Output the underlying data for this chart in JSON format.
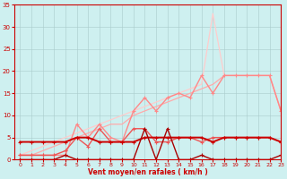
{
  "xlabel": "Vent moyen/en rafales ( km/h )",
  "background_color": "#cef0f0",
  "grid_color": "#aacccc",
  "xlim": [
    -0.5,
    23
  ],
  "ylim": [
    0,
    35
  ],
  "yticks": [
    0,
    5,
    10,
    15,
    20,
    25,
    30,
    35
  ],
  "xticks": [
    0,
    1,
    2,
    3,
    4,
    5,
    6,
    7,
    8,
    9,
    10,
    11,
    12,
    13,
    14,
    15,
    16,
    17,
    18,
    19,
    20,
    21,
    22,
    23
  ],
  "series": [
    {
      "name": "lightest_ramp",
      "color": "#ffcccc",
      "linewidth": 0.9,
      "marker": "None",
      "markersize": 0,
      "x": [
        0,
        1,
        2,
        3,
        4,
        5,
        6,
        7,
        8,
        9,
        10,
        11,
        12,
        13,
        14,
        15,
        16,
        17,
        18,
        19,
        20,
        21,
        22,
        23
      ],
      "y": [
        1,
        2,
        3,
        4,
        5,
        6,
        7,
        8,
        9,
        10,
        11,
        12,
        13,
        14,
        15,
        16,
        17,
        33,
        19,
        19,
        19,
        19,
        19,
        11
      ]
    },
    {
      "name": "light_ramp",
      "color": "#ffaaaa",
      "linewidth": 0.9,
      "marker": "None",
      "markersize": 0,
      "x": [
        0,
        1,
        2,
        3,
        4,
        5,
        6,
        7,
        8,
        9,
        10,
        11,
        12,
        13,
        14,
        15,
        16,
        17,
        18,
        19,
        20,
        21,
        22,
        23
      ],
      "y": [
        1,
        1,
        2,
        3,
        4,
        5,
        6,
        7,
        8,
        8,
        10,
        11,
        12,
        13,
        14,
        15,
        16,
        17,
        19,
        19,
        19,
        19,
        19,
        11
      ]
    },
    {
      "name": "medium_light_wiggly",
      "color": "#ff8888",
      "linewidth": 1.0,
      "marker": "+",
      "markersize": 3,
      "x": [
        0,
        1,
        2,
        3,
        4,
        5,
        6,
        7,
        8,
        9,
        10,
        11,
        12,
        13,
        14,
        15,
        16,
        17,
        18,
        19,
        20,
        21,
        22,
        23
      ],
      "y": [
        1,
        1,
        1,
        1,
        1,
        8,
        5,
        8,
        5,
        4,
        11,
        14,
        11,
        14,
        15,
        14,
        19,
        15,
        19,
        19,
        19,
        19,
        19,
        11
      ]
    },
    {
      "name": "medium_wiggly",
      "color": "#ee5555",
      "linewidth": 1.0,
      "marker": "+",
      "markersize": 3,
      "x": [
        0,
        1,
        2,
        3,
        4,
        5,
        6,
        7,
        8,
        9,
        10,
        11,
        12,
        13,
        14,
        15,
        16,
        17,
        18,
        19,
        20,
        21,
        22,
        23
      ],
      "y": [
        1,
        1,
        1,
        1,
        2,
        5,
        3,
        7,
        4,
        4,
        7,
        7,
        4,
        4,
        5,
        5,
        4,
        5,
        5,
        5,
        5,
        5,
        5,
        4
      ]
    },
    {
      "name": "dark_flat",
      "color": "#cc0000",
      "linewidth": 1.4,
      "marker": "+",
      "markersize": 3.5,
      "x": [
        0,
        1,
        2,
        3,
        4,
        5,
        6,
        7,
        8,
        9,
        10,
        11,
        12,
        13,
        14,
        15,
        16,
        17,
        18,
        19,
        20,
        21,
        22,
        23
      ],
      "y": [
        4,
        4,
        4,
        4,
        4,
        5,
        5,
        4,
        4,
        4,
        4,
        5,
        5,
        5,
        5,
        5,
        5,
        4,
        5,
        5,
        5,
        5,
        5,
        4
      ]
    },
    {
      "name": "darkest_near_zero",
      "color": "#aa0000",
      "linewidth": 1.0,
      "marker": "+",
      "markersize": 3,
      "x": [
        0,
        1,
        2,
        3,
        4,
        5,
        6,
        7,
        8,
        9,
        10,
        11,
        12,
        13,
        14,
        15,
        16,
        17,
        18,
        19,
        20,
        21,
        22,
        23
      ],
      "y": [
        0,
        0,
        0,
        0,
        1,
        0,
        0,
        0,
        0,
        0,
        0,
        7,
        0,
        7,
        0,
        0,
        1,
        0,
        0,
        0,
        0,
        0,
        0,
        1
      ]
    }
  ]
}
